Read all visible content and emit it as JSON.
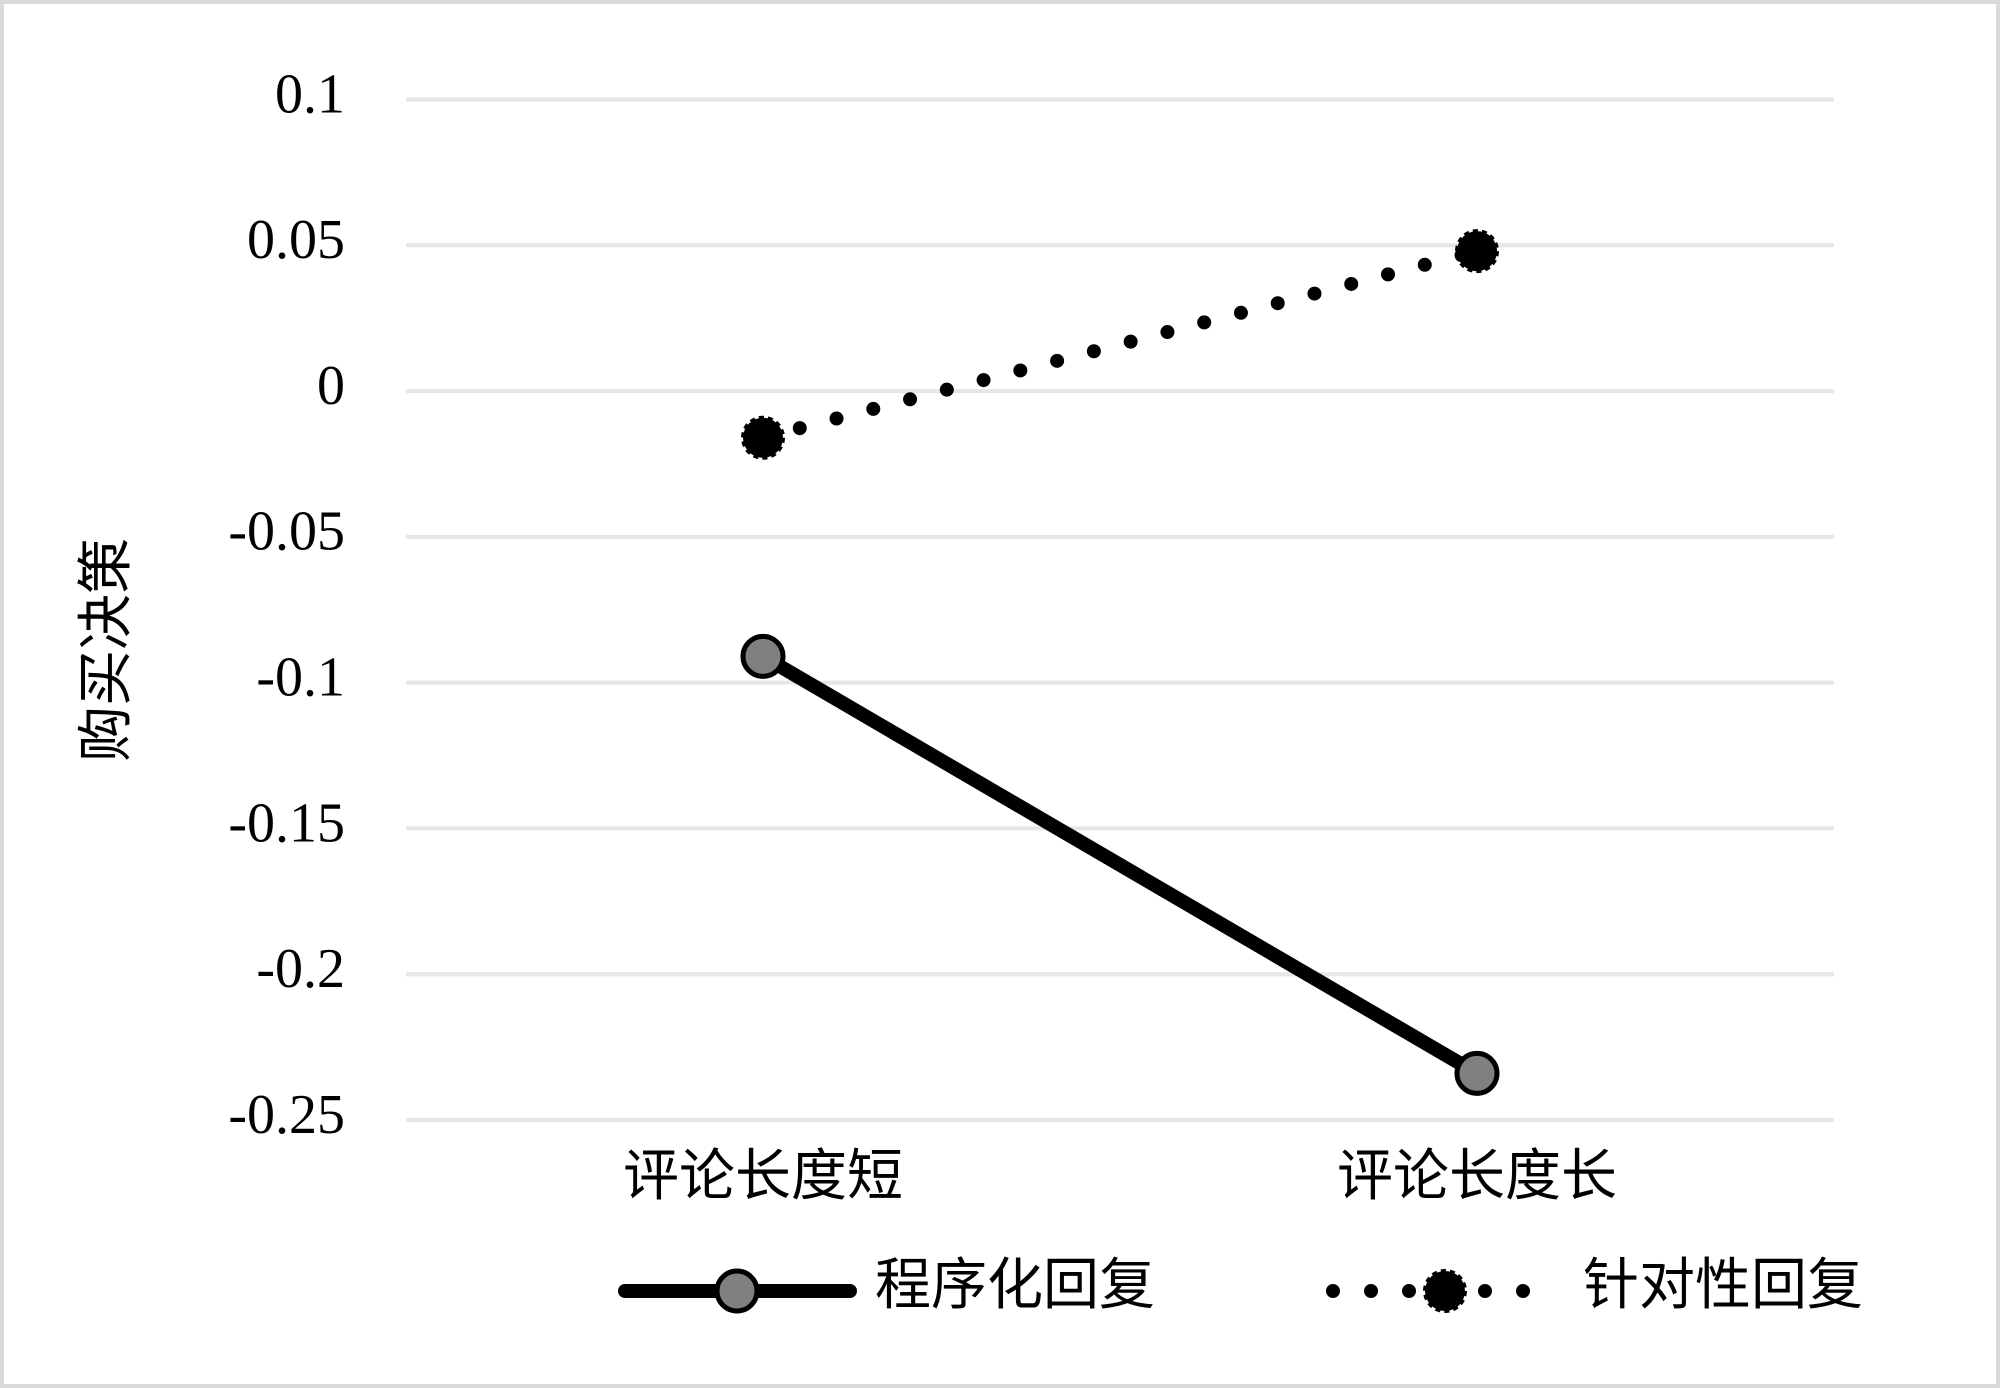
{
  "chart_data": {
    "type": "line",
    "y_label": "购买决策",
    "categories": [
      "评论长度短",
      "评论长度长"
    ],
    "series": [
      {
        "name": "程序化回复",
        "color": "#000000",
        "marker_color": "#808080",
        "line_style": "solid",
        "values": [
          -0.091,
          -0.234
        ]
      },
      {
        "name": "针对性回复",
        "color": "#000000",
        "marker_color": "#000000",
        "line_style": "dotted",
        "values": [
          -0.016,
          0.048
        ]
      }
    ],
    "ylim": [
      -0.25,
      0.1
    ],
    "yticks": [
      0.1,
      0.05,
      0,
      -0.05,
      -0.1,
      -0.15,
      -0.2,
      -0.25
    ],
    "grid": true,
    "legend": "bottom"
  }
}
